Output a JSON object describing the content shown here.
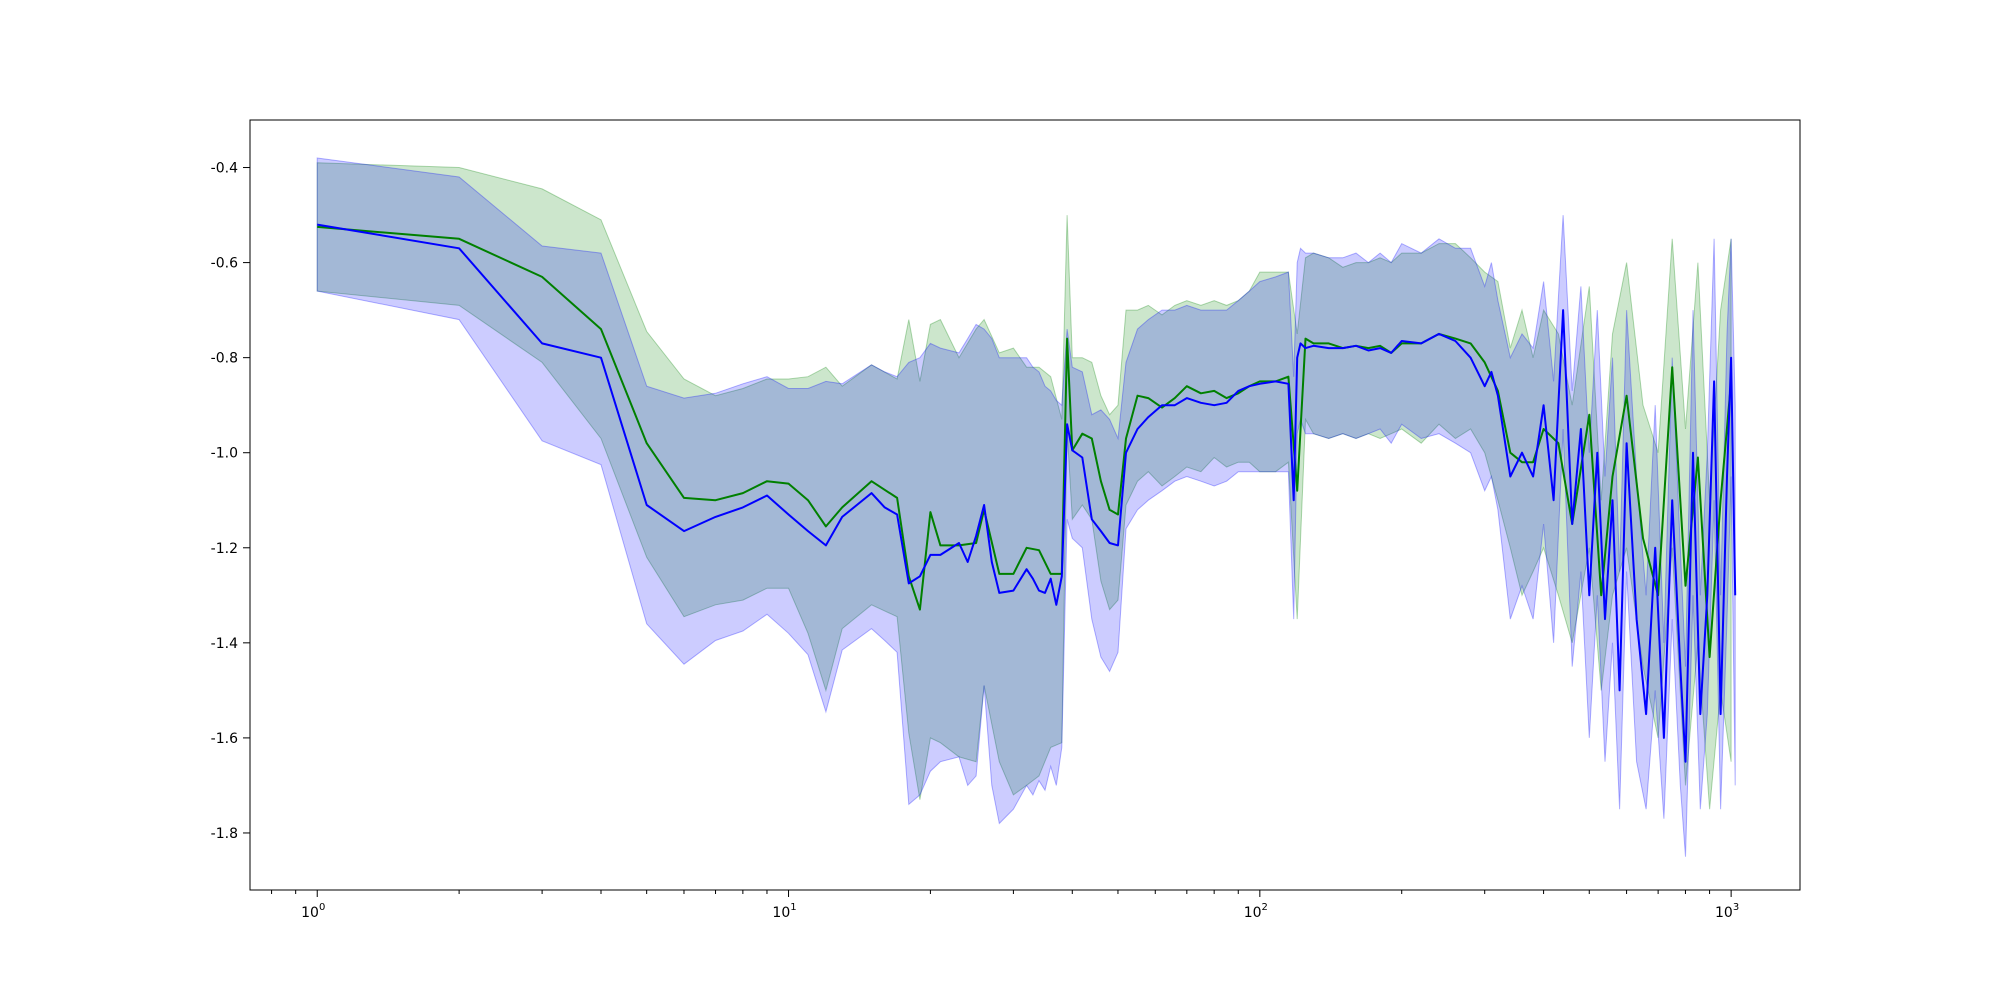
{
  "chart_data": {
    "type": "line",
    "title": "",
    "xlabel": "",
    "ylabel": "",
    "x_scale": "log",
    "xlim": [
      0.72,
      1400
    ],
    "ylim": [
      -1.92,
      -0.3
    ],
    "grid": false,
    "x_ticks": [
      {
        "value": 1,
        "base": "10",
        "exp": "0"
      },
      {
        "value": 10,
        "base": "10",
        "exp": "1"
      },
      {
        "value": 100,
        "base": "10",
        "exp": "2"
      },
      {
        "value": 1000,
        "base": "10",
        "exp": "3"
      }
    ],
    "y_ticks": [
      {
        "value": -0.4,
        "label": "-0.4"
      },
      {
        "value": -0.6,
        "label": "-0.6"
      },
      {
        "value": -0.8,
        "label": "-0.8"
      },
      {
        "value": -1.0,
        "label": "-1.0"
      },
      {
        "value": -1.2,
        "label": "-1.2"
      },
      {
        "value": -1.4,
        "label": "-1.4"
      },
      {
        "value": -1.6,
        "label": "-1.6"
      },
      {
        "value": -1.8,
        "label": "-1.8"
      }
    ],
    "series": [
      {
        "color": "#008000",
        "band_color": "#008000",
        "band_opacity": 0.2,
        "x": [
          1,
          2,
          3,
          4,
          5,
          6,
          7,
          8,
          9,
          10,
          11,
          12,
          13,
          15,
          17,
          18,
          19,
          20,
          21,
          23,
          25,
          26,
          28,
          30,
          32,
          34,
          36,
          38,
          39,
          40,
          42,
          44,
          46,
          48,
          50,
          52,
          55,
          58,
          62,
          66,
          70,
          75,
          80,
          85,
          90,
          95,
          100,
          108,
          115,
          120,
          125,
          130,
          140,
          150,
          160,
          170,
          180,
          190,
          200,
          220,
          240,
          260,
          280,
          300,
          320,
          340,
          360,
          380,
          400,
          430,
          460,
          500,
          530,
          560,
          600,
          650,
          700,
          750,
          800,
          850,
          900,
          950,
          1000
        ],
        "y": [
          -0.525,
          -0.55,
          -0.63,
          -0.74,
          -0.98,
          -1.095,
          -1.1,
          -1.085,
          -1.06,
          -1.065,
          -1.1,
          -1.155,
          -1.115,
          -1.06,
          -1.095,
          -1.26,
          -1.33,
          -1.125,
          -1.195,
          -1.195,
          -1.19,
          -1.12,
          -1.255,
          -1.255,
          -1.2,
          -1.205,
          -1.255,
          -1.255,
          -0.76,
          -0.995,
          -0.96,
          -0.97,
          -1.06,
          -1.12,
          -1.13,
          -0.97,
          -0.88,
          -0.885,
          -0.905,
          -0.885,
          -0.86,
          -0.875,
          -0.87,
          -0.885,
          -0.875,
          -0.86,
          -0.85,
          -0.85,
          -0.84,
          -1.08,
          -0.76,
          -0.77,
          -0.77,
          -0.78,
          -0.775,
          -0.78,
          -0.775,
          -0.79,
          -0.77,
          -0.77,
          -0.75,
          -0.76,
          -0.77,
          -0.81,
          -0.87,
          -1.0,
          -1.02,
          -1.02,
          -0.95,
          -0.98,
          -1.15,
          -0.92,
          -1.3,
          -1.05,
          -0.88,
          -1.18,
          -1.3,
          -0.82,
          -1.28,
          -1.01,
          -1.43,
          -1.1,
          -0.85
        ],
        "lower": [
          -0.66,
          -0.69,
          -0.81,
          -0.97,
          -1.22,
          -1.345,
          -1.32,
          -1.31,
          -1.285,
          -1.285,
          -1.38,
          -1.5,
          -1.37,
          -1.32,
          -1.345,
          -1.59,
          -1.73,
          -1.6,
          -1.61,
          -1.64,
          -1.65,
          -1.49,
          -1.65,
          -1.72,
          -1.7,
          -1.68,
          -1.62,
          -1.61,
          -0.95,
          -1.14,
          -1.11,
          -1.14,
          -1.27,
          -1.33,
          -1.31,
          -1.11,
          -1.06,
          -1.04,
          -1.07,
          -1.05,
          -1.03,
          -1.04,
          -1.01,
          -1.03,
          -1.02,
          -1.02,
          -1.04,
          -1.04,
          -1.02,
          -1.35,
          -0.93,
          -0.96,
          -0.97,
          -0.96,
          -0.97,
          -0.96,
          -0.97,
          -0.96,
          -0.95,
          -0.98,
          -0.94,
          -0.97,
          -0.95,
          -1.0,
          -1.1,
          -1.2,
          -1.3,
          -1.25,
          -1.2,
          -1.3,
          -1.4,
          -1.2,
          -1.5,
          -1.3,
          -1.2,
          -1.45,
          -1.6,
          -1.2,
          -1.7,
          -1.4,
          -1.75,
          -1.5,
          -1.65
        ],
        "upper": [
          -0.39,
          -0.4,
          -0.445,
          -0.51,
          -0.745,
          -0.845,
          -0.88,
          -0.865,
          -0.845,
          -0.845,
          -0.84,
          -0.82,
          -0.86,
          -0.815,
          -0.845,
          -0.72,
          -0.85,
          -0.73,
          -0.72,
          -0.8,
          -0.74,
          -0.72,
          -0.79,
          -0.78,
          -0.82,
          -0.82,
          -0.84,
          -0.93,
          -0.5,
          -0.8,
          -0.8,
          -0.81,
          -0.88,
          -0.92,
          -0.9,
          -0.7,
          -0.7,
          -0.69,
          -0.71,
          -0.69,
          -0.68,
          -0.69,
          -0.68,
          -0.69,
          -0.68,
          -0.66,
          -0.62,
          -0.62,
          -0.62,
          -0.75,
          -0.59,
          -0.58,
          -0.59,
          -0.61,
          -0.6,
          -0.6,
          -0.59,
          -0.6,
          -0.58,
          -0.58,
          -0.56,
          -0.56,
          -0.59,
          -0.62,
          -0.64,
          -0.78,
          -0.7,
          -0.8,
          -0.7,
          -0.75,
          -0.9,
          -0.65,
          -1.1,
          -0.75,
          -0.6,
          -0.9,
          -1.0,
          -0.55,
          -0.95,
          -0.6,
          -1.1,
          -0.7,
          -0.55
        ]
      },
      {
        "color": "#0000ff",
        "band_color": "#0000ff",
        "band_opacity": 0.2,
        "x": [
          1,
          2,
          3,
          4,
          5,
          6,
          7,
          8,
          9,
          10,
          11,
          12,
          13,
          15,
          16,
          17,
          18,
          19,
          20,
          21,
          23,
          24,
          25,
          26,
          27,
          28,
          30,
          32,
          33,
          34,
          35,
          36,
          37,
          38,
          39,
          40,
          42,
          44,
          46,
          48,
          50,
          52,
          55,
          58,
          62,
          66,
          70,
          75,
          80,
          85,
          90,
          95,
          100,
          108,
          115,
          118,
          120,
          122,
          125,
          130,
          140,
          150,
          160,
          170,
          180,
          190,
          200,
          220,
          240,
          260,
          280,
          300,
          310,
          320,
          340,
          360,
          380,
          400,
          420,
          440,
          460,
          480,
          500,
          520,
          540,
          560,
          580,
          600,
          630,
          660,
          690,
          720,
          750,
          780,
          800,
          830,
          860,
          890,
          920,
          950,
          980,
          1000,
          1020
        ],
        "y": [
          -0.52,
          -0.57,
          -0.77,
          -0.8,
          -1.11,
          -1.165,
          -1.135,
          -1.115,
          -1.09,
          -1.13,
          -1.165,
          -1.195,
          -1.135,
          -1.085,
          -1.115,
          -1.13,
          -1.275,
          -1.26,
          -1.215,
          -1.215,
          -1.19,
          -1.23,
          -1.175,
          -1.11,
          -1.23,
          -1.295,
          -1.29,
          -1.245,
          -1.265,
          -1.29,
          -1.295,
          -1.265,
          -1.32,
          -1.26,
          -0.94,
          -0.995,
          -1.01,
          -1.14,
          -1.165,
          -1.19,
          -1.195,
          -1.0,
          -0.95,
          -0.925,
          -0.9,
          -0.9,
          -0.885,
          -0.895,
          -0.9,
          -0.895,
          -0.87,
          -0.86,
          -0.855,
          -0.85,
          -0.855,
          -1.1,
          -0.8,
          -0.77,
          -0.78,
          -0.775,
          -0.78,
          -0.78,
          -0.775,
          -0.785,
          -0.78,
          -0.79,
          -0.765,
          -0.77,
          -0.75,
          -0.765,
          -0.8,
          -0.86,
          -0.83,
          -0.88,
          -1.05,
          -1.0,
          -1.05,
          -0.9,
          -1.1,
          -0.7,
          -1.15,
          -0.95,
          -1.3,
          -1.0,
          -1.35,
          -1.1,
          -1.5,
          -0.98,
          -1.35,
          -1.55,
          -1.2,
          -1.6,
          -1.1,
          -1.45,
          -1.65,
          -1.0,
          -1.55,
          -1.3,
          -0.85,
          -1.55,
          -1.05,
          -0.8,
          -1.3
        ],
        "lower": [
          -0.66,
          -0.72,
          -0.975,
          -1.025,
          -1.36,
          -1.445,
          -1.395,
          -1.375,
          -1.34,
          -1.38,
          -1.425,
          -1.545,
          -1.415,
          -1.37,
          -1.395,
          -1.42,
          -1.74,
          -1.72,
          -1.67,
          -1.65,
          -1.64,
          -1.7,
          -1.68,
          -1.49,
          -1.7,
          -1.78,
          -1.75,
          -1.7,
          -1.72,
          -1.69,
          -1.71,
          -1.66,
          -1.7,
          -1.62,
          -1.14,
          -1.18,
          -1.2,
          -1.35,
          -1.43,
          -1.46,
          -1.42,
          -1.16,
          -1.12,
          -1.1,
          -1.08,
          -1.06,
          -1.05,
          -1.06,
          -1.07,
          -1.06,
          -1.04,
          -1.04,
          -1.04,
          -1.04,
          -1.04,
          -1.35,
          -0.96,
          -0.93,
          -0.96,
          -0.96,
          -0.97,
          -0.96,
          -0.97,
          -0.96,
          -0.95,
          -0.98,
          -0.94,
          -0.97,
          -0.96,
          -0.98,
          -1.0,
          -1.08,
          -1.05,
          -1.12,
          -1.35,
          -1.28,
          -1.35,
          -1.15,
          -1.4,
          -0.95,
          -1.45,
          -1.25,
          -1.6,
          -1.3,
          -1.65,
          -1.4,
          -1.75,
          -1.25,
          -1.65,
          -1.75,
          -1.5,
          -1.77,
          -1.35,
          -1.7,
          -1.85,
          -1.3,
          -1.75,
          -1.55,
          -1.1,
          -1.75,
          -1.35,
          -1.05,
          -1.7
        ],
        "upper": [
          -0.38,
          -0.42,
          -0.565,
          -0.58,
          -0.86,
          -0.885,
          -0.875,
          -0.855,
          -0.84,
          -0.865,
          -0.865,
          -0.85,
          -0.855,
          -0.815,
          -0.83,
          -0.84,
          -0.81,
          -0.8,
          -0.77,
          -0.78,
          -0.79,
          -0.76,
          -0.73,
          -0.74,
          -0.76,
          -0.8,
          -0.8,
          -0.8,
          -0.82,
          -0.83,
          -0.86,
          -0.87,
          -0.89,
          -0.9,
          -0.74,
          -0.82,
          -0.83,
          -0.92,
          -0.91,
          -0.93,
          -0.97,
          -0.81,
          -0.74,
          -0.72,
          -0.7,
          -0.7,
          -0.69,
          -0.7,
          -0.7,
          -0.7,
          -0.68,
          -0.66,
          -0.64,
          -0.63,
          -0.62,
          -0.84,
          -0.6,
          -0.57,
          -0.58,
          -0.58,
          -0.59,
          -0.59,
          -0.58,
          -0.6,
          -0.58,
          -0.6,
          -0.56,
          -0.58,
          -0.55,
          -0.57,
          -0.57,
          -0.65,
          -0.6,
          -0.68,
          -0.8,
          -0.75,
          -0.78,
          -0.64,
          -0.85,
          -0.5,
          -0.87,
          -0.65,
          -1.0,
          -0.7,
          -1.05,
          -0.8,
          -1.25,
          -0.7,
          -1.05,
          -1.3,
          -0.9,
          -1.4,
          -0.8,
          -1.2,
          -1.45,
          -0.7,
          -1.3,
          -1.0,
          -0.55,
          -1.3,
          -0.75,
          -0.55,
          -0.9
        ]
      }
    ]
  }
}
